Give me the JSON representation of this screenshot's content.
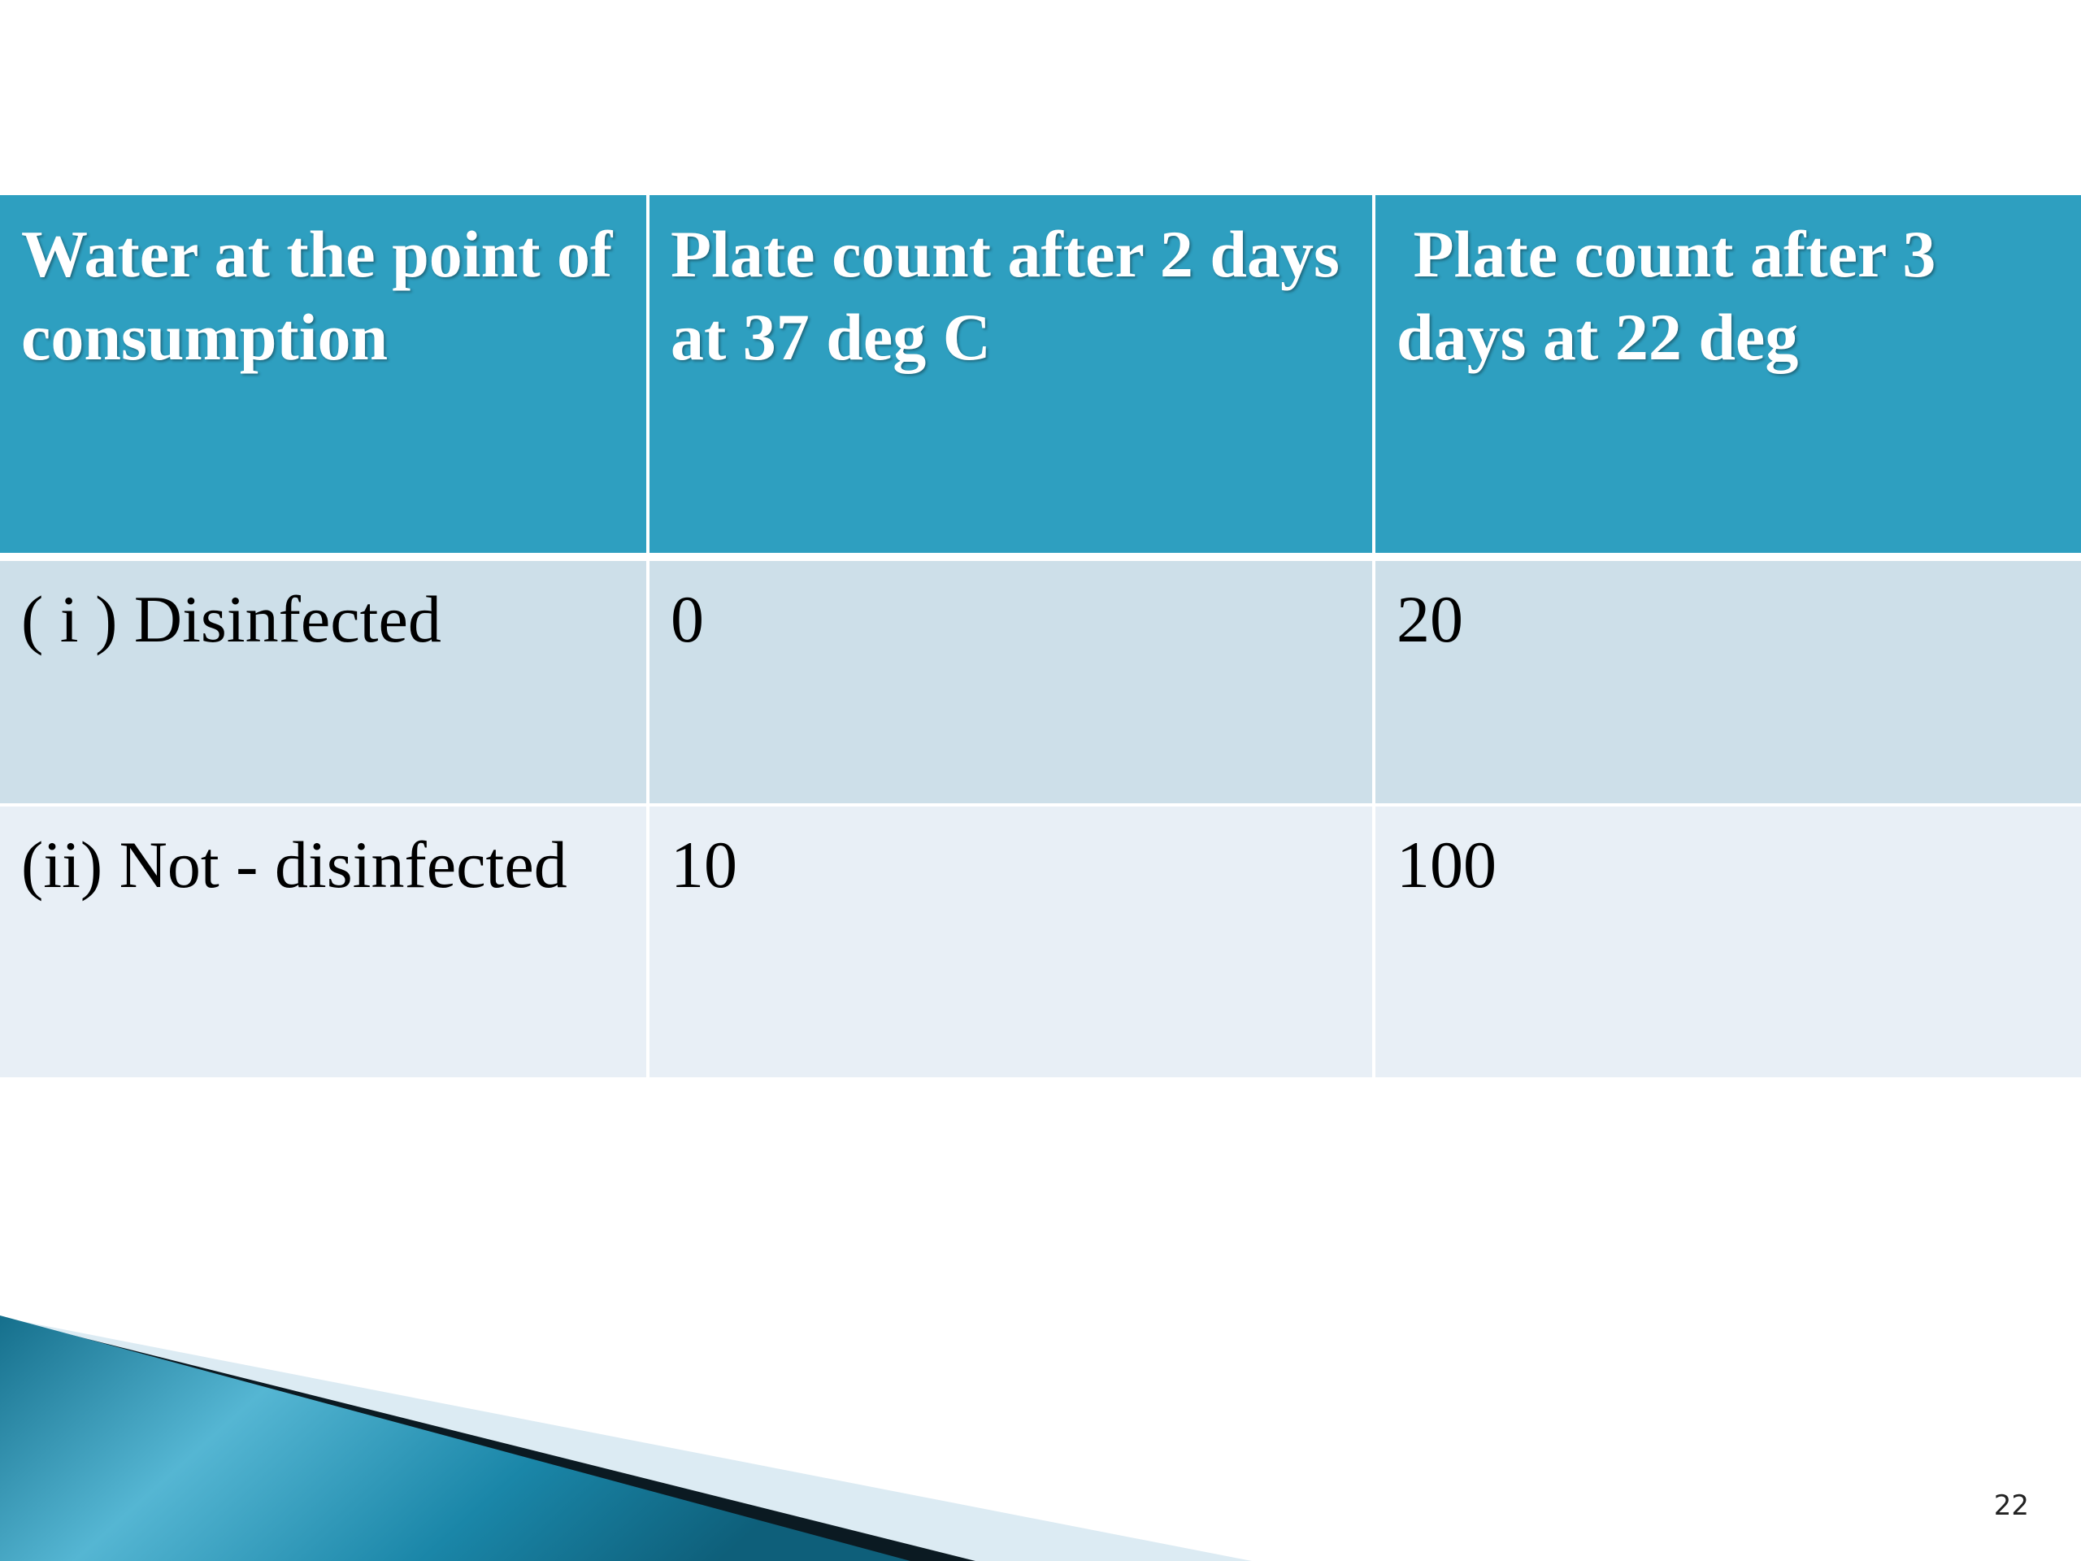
{
  "table": {
    "headers": [
      "Water at the point of consumption",
      "Plate count after 2 days at 37 deg C",
      " Plate count after 3 days at 22 deg"
    ],
    "rows": [
      [
        "( i ) Disinfected",
        "0",
        "20"
      ],
      [
        "(ii) Not - disinfected",
        "10",
        "100"
      ]
    ]
  },
  "colors": {
    "header_bg": "#2e9fc0",
    "row1_bg": "#cddfe9",
    "row2_bg": "#e8eff6",
    "accent_teal": "#1a7f9f"
  },
  "slide": {
    "page_number": "22"
  }
}
